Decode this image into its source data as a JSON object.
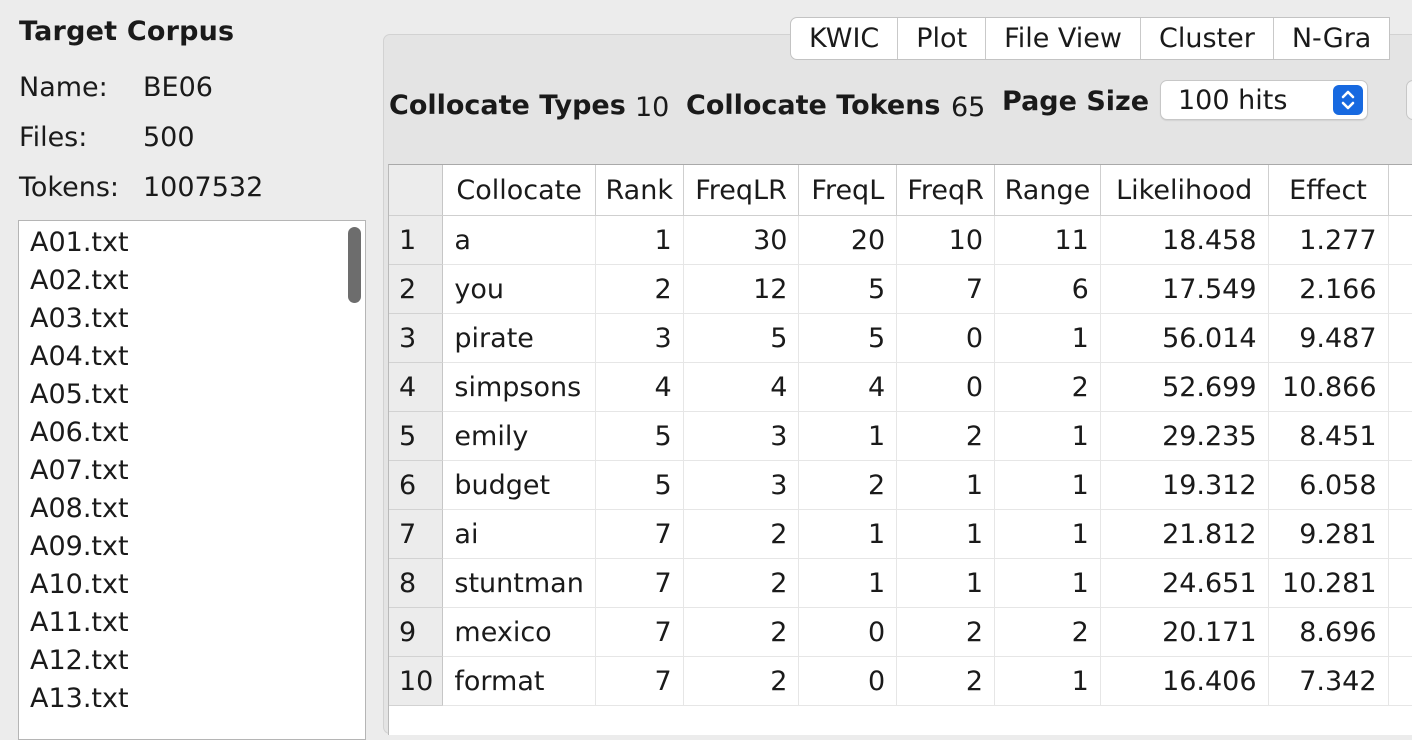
{
  "corpus": {
    "title": "Target Corpus",
    "name_label": "Name:",
    "name_value": "BE06",
    "files_label": "Files:",
    "files_value": "500",
    "tokens_label": "Tokens:",
    "tokens_value": "1007532",
    "files": [
      "A01.txt",
      "A02.txt",
      "A03.txt",
      "A04.txt",
      "A05.txt",
      "A06.txt",
      "A07.txt",
      "A08.txt",
      "A09.txt",
      "A10.txt",
      "A11.txt",
      "A12.txt",
      "A13.txt"
    ]
  },
  "tabs": [
    "KWIC",
    "Plot",
    "File View",
    "Cluster",
    "N-Gra"
  ],
  "stats": {
    "types_label": "Collocate Types",
    "types_value": "10",
    "tokens_label": "Collocate Tokens",
    "tokens_value": "65",
    "page_size_label": "Page Size",
    "page_size_value": "100 hits"
  },
  "table": {
    "columns": [
      "Collocate",
      "Rank",
      "FreqLR",
      "FreqL",
      "FreqR",
      "Range",
      "Likelihood",
      "Effect"
    ],
    "rows": [
      [
        "1",
        "a",
        "1",
        "30",
        "20",
        "10",
        "11",
        "18.458",
        "1.277"
      ],
      [
        "2",
        "you",
        "2",
        "12",
        "5",
        "7",
        "6",
        "17.549",
        "2.166"
      ],
      [
        "3",
        "pirate",
        "3",
        "5",
        "5",
        "0",
        "1",
        "56.014",
        "9.487"
      ],
      [
        "4",
        "simpsons",
        "4",
        "4",
        "4",
        "0",
        "2",
        "52.699",
        "10.866"
      ],
      [
        "5",
        "emily",
        "5",
        "3",
        "1",
        "2",
        "1",
        "29.235",
        "8.451"
      ],
      [
        "6",
        "budget",
        "5",
        "3",
        "2",
        "1",
        "1",
        "19.312",
        "6.058"
      ],
      [
        "7",
        "ai",
        "7",
        "2",
        "1",
        "1",
        "1",
        "21.812",
        "9.281"
      ],
      [
        "8",
        "stuntman",
        "7",
        "2",
        "1",
        "1",
        "1",
        "24.651",
        "10.281"
      ],
      [
        "9",
        "mexico",
        "7",
        "2",
        "0",
        "2",
        "2",
        "20.171",
        "8.696"
      ],
      [
        "10",
        "format",
        "7",
        "2",
        "0",
        "2",
        "1",
        "16.406",
        "7.342"
      ]
    ]
  },
  "colors": {
    "accent": "#1769e0",
    "panel": "#ececec",
    "tabs_bg": "#ffffff"
  }
}
